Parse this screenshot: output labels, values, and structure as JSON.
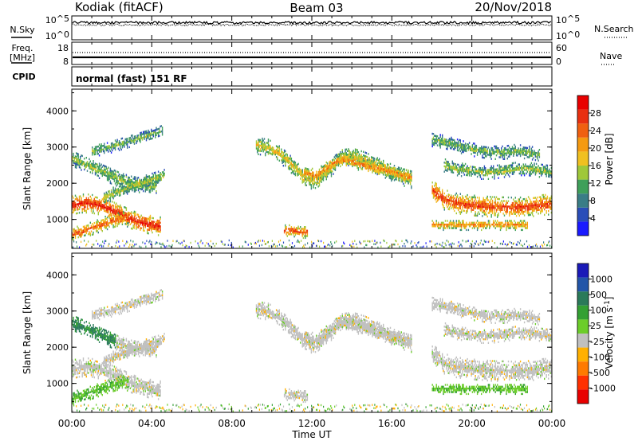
{
  "header": {
    "site": "Kodiak (fitACF)",
    "beam": "Beam 03",
    "date": "20/Nov/2018"
  },
  "status_panels": {
    "nsky_label": "N.Sky",
    "nsky_ticks": [
      "10^5",
      "10^0"
    ],
    "nsearch_label": "N.Search",
    "nsearch_ticks": [
      "10^5",
      "10^0"
    ],
    "freq_label_line1": "Freq.",
    "freq_label_line2": "[MHz]",
    "freq_ticks": [
      "18",
      "8"
    ],
    "nave_label": "Nave",
    "nave_ticks": [
      "60",
      "0"
    ],
    "cpid_label": "CPID",
    "cpid_text": "normal (fast) 151 RF"
  },
  "chart_data": [
    {
      "type": "heatmap",
      "name": "power",
      "ylabel": "Slant Range [km]",
      "yticks": [
        "1000",
        "2000",
        "3000",
        "4000"
      ],
      "ylim": [
        200,
        4600
      ],
      "xlim": [
        0,
        24
      ],
      "colorbar": {
        "label": "Power [dB]",
        "ticks": [
          "4",
          "8",
          "12",
          "16",
          "20",
          "24",
          "28"
        ],
        "colors": [
          "#1a1aff",
          "#2a4db8",
          "#3a7d86",
          "#3fa05a",
          "#9fc83a",
          "#f0c020",
          "#f59a10",
          "#f06010",
          "#e83010",
          "#e80000"
        ]
      },
      "echo_bands": [
        {
          "t": [
            0.0,
            0.4,
            0.8,
            1.2,
            1.6,
            2.0,
            2.4,
            2.8,
            3.2,
            3.6,
            4.0,
            4.4
          ],
          "r": [
            1400,
            1450,
            1450,
            1420,
            1350,
            1250,
            1150,
            1050,
            950,
            900,
            850,
            820
          ],
          "width": 260,
          "level": 0.92
        },
        {
          "t": [
            0.0,
            0.4,
            0.8,
            1.2,
            1.6,
            2.0,
            2.4,
            2.8
          ],
          "r": [
            600,
            650,
            720,
            800,
            880,
            960,
            1020,
            1080
          ],
          "width": 180,
          "level": 0.8
        },
        {
          "t": [
            0.0,
            0.6,
            1.2,
            1.8,
            2.4,
            3.0,
            3.6,
            4.2
          ],
          "r": [
            2700,
            2550,
            2400,
            2250,
            2100,
            2000,
            1950,
            1900
          ],
          "width": 220,
          "level": 0.45
        },
        {
          "t": [
            1.0,
            1.6,
            2.2,
            2.8,
            3.4,
            4.0,
            4.5
          ],
          "r": [
            2900,
            2950,
            3050,
            3150,
            3250,
            3350,
            3450
          ],
          "width": 160,
          "level": 0.4
        },
        {
          "t": [
            1.6,
            2.2,
            2.8,
            3.4,
            4.0,
            4.6
          ],
          "r": [
            1600,
            1750,
            1900,
            2000,
            2100,
            2200
          ],
          "width": 180,
          "level": 0.5
        },
        {
          "t": [
            9.2,
            9.8,
            10.4,
            11.0,
            11.6,
            12.2,
            12.8,
            13.4,
            14.0,
            14.6,
            15.2,
            15.8,
            16.4,
            17.0
          ],
          "r": [
            3050,
            3000,
            2800,
            2500,
            2150,
            2050,
            2350,
            2700,
            2750,
            2650,
            2500,
            2350,
            2200,
            2100
          ],
          "width": 240,
          "level": 0.55
        },
        {
          "t": [
            11.6,
            12.2,
            12.8,
            13.4,
            14.0,
            14.6,
            15.2,
            15.8,
            16.4,
            17.0
          ],
          "r": [
            2300,
            2200,
            2450,
            2650,
            2600,
            2500,
            2400,
            2350,
            2250,
            2150
          ],
          "width": 180,
          "level": 0.72
        },
        {
          "t": [
            18.0,
            18.6,
            19.2,
            19.8,
            20.4,
            21.0,
            21.6,
            22.2,
            22.8,
            23.4,
            24.0
          ],
          "r": [
            1800,
            1550,
            1450,
            1400,
            1380,
            1350,
            1340,
            1330,
            1350,
            1400,
            1420
          ],
          "width": 280,
          "level": 0.85
        },
        {
          "t": [
            18.6,
            19.2,
            19.8,
            20.4,
            21.0,
            21.6,
            22.2,
            22.8,
            23.4,
            24.0
          ],
          "r": [
            2500,
            2400,
            2350,
            2300,
            2300,
            2350,
            2400,
            2400,
            2350,
            2300
          ],
          "width": 180,
          "level": 0.45
        },
        {
          "t": [
            18.0,
            18.6,
            19.2,
            19.8,
            20.4,
            21.0,
            21.6,
            22.2,
            22.8,
            23.4
          ],
          "r": [
            3200,
            3150,
            3050,
            2950,
            2900,
            2850,
            2850,
            2900,
            2850,
            2800
          ],
          "width": 180,
          "level": 0.42
        },
        {
          "t": [
            18.0,
            18.8,
            19.6,
            20.4,
            21.2,
            22.0,
            22.8
          ],
          "r": [
            850,
            850,
            850,
            850,
            850,
            850,
            850
          ],
          "width": 140,
          "level": 0.7
        },
        {
          "t": [
            10.6,
            11.0,
            11.4,
            11.8
          ],
          "r": [
            700,
            700,
            650,
            650
          ],
          "width": 160,
          "level": 0.82
        }
      ]
    },
    {
      "type": "heatmap",
      "name": "velocity",
      "xlabel": "Time UT",
      "ylabel": "Slant Range [km]",
      "xticks": [
        "00:00",
        "04:00",
        "08:00",
        "12:00",
        "16:00",
        "20:00",
        "00:00"
      ],
      "yticks": [
        "1000",
        "2000",
        "3000",
        "4000"
      ],
      "ylim": [
        200,
        4600
      ],
      "xlim": [
        0,
        24
      ],
      "colorbar": {
        "label": "Velocity [m s^-1]",
        "ticks": [
          "1000",
          "500",
          "100",
          "25",
          "-25",
          "-100",
          "-500",
          "-1000"
        ],
        "colors": [
          "#1a1ab8",
          "#2255a8",
          "#2a7a5a",
          "#33a033",
          "#6ccd2a",
          "#c0c0c0",
          "#ffb000",
          "#ff7a00",
          "#ff3000",
          "#e80000"
        ]
      }
    }
  ]
}
